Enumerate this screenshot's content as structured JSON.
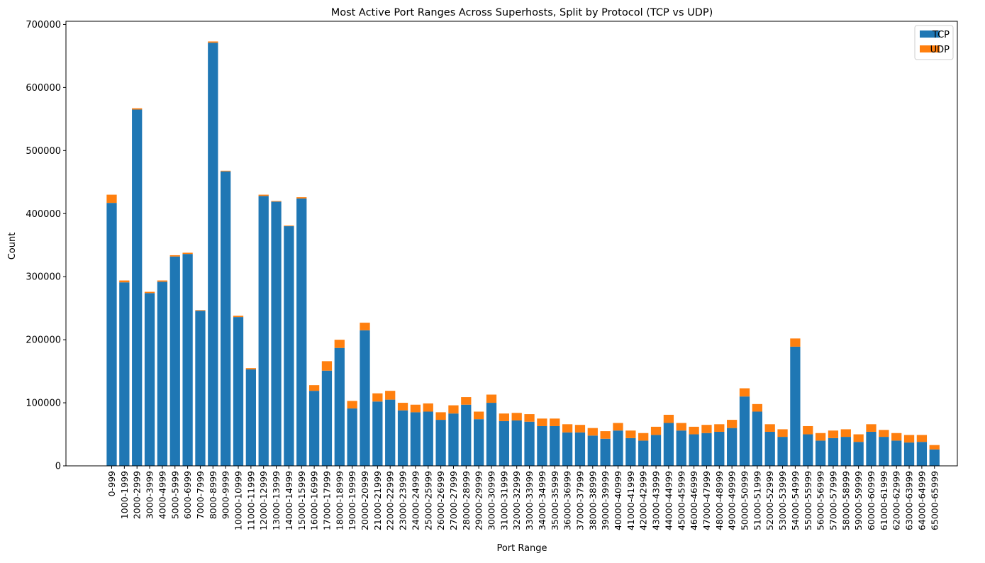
{
  "chart_data": {
    "type": "bar",
    "stacked": true,
    "title": "Most Active Port Ranges Across Superhosts, Split by Protocol (TCP vs UDP)",
    "xlabel": "Port Range",
    "ylabel": "Count",
    "ylim": [
      0,
      705000
    ],
    "yticks": [
      0,
      100000,
      200000,
      300000,
      400000,
      500000,
      600000,
      700000
    ],
    "ytick_labels": [
      "0",
      "100000",
      "200000",
      "300000",
      "400000",
      "500000",
      "600000",
      "700000"
    ],
    "grid": false,
    "legend_position": "top-right",
    "categories": [
      "0-999",
      "1000-1999",
      "2000-2999",
      "3000-3999",
      "4000-4999",
      "5000-5999",
      "6000-6999",
      "7000-7999",
      "8000-8999",
      "9000-9999",
      "10000-10999",
      "11000-11999",
      "12000-12999",
      "13000-13999",
      "14000-14999",
      "15000-15999",
      "16000-16999",
      "17000-17999",
      "18000-18999",
      "19000-19999",
      "20000-20999",
      "21000-21999",
      "22000-22999",
      "23000-23999",
      "24000-24999",
      "25000-25999",
      "26000-26999",
      "27000-27999",
      "28000-28999",
      "29000-29999",
      "30000-30999",
      "31000-31999",
      "32000-32999",
      "33000-33999",
      "34000-34999",
      "35000-35999",
      "36000-36999",
      "37000-37999",
      "38000-38999",
      "39000-39999",
      "40000-40999",
      "41000-41999",
      "42000-42999",
      "43000-43999",
      "44000-44999",
      "45000-45999",
      "46000-46999",
      "47000-47999",
      "48000-48999",
      "49000-49999",
      "50000-50999",
      "51000-51999",
      "52000-52999",
      "53000-53999",
      "54000-54999",
      "55000-55999",
      "56000-56999",
      "57000-57999",
      "58000-58999",
      "59000-59999",
      "60000-60999",
      "61000-61999",
      "62000-62999",
      "63000-63999",
      "64000-64999",
      "65000-65999"
    ],
    "series": [
      {
        "name": "TCP",
        "color": "#1f77b4",
        "values": [
          417000,
          291000,
          565000,
          274000,
          292000,
          332000,
          336000,
          246000,
          671000,
          467000,
          236000,
          153000,
          428000,
          419000,
          380000,
          424000,
          119000,
          151000,
          187000,
          91000,
          215000,
          102000,
          105000,
          88000,
          85000,
          86000,
          73000,
          83000,
          97000,
          74000,
          100000,
          71000,
          72000,
          70000,
          63000,
          63000,
          53000,
          53000,
          48000,
          43000,
          56000,
          44000,
          40000,
          49000,
          68000,
          56000,
          50000,
          52000,
          54000,
          60000,
          110000,
          86000,
          54000,
          46000,
          189000,
          50000,
          40000,
          44000,
          46000,
          38000,
          54000,
          46000,
          40000,
          37000,
          38000,
          26000
        ]
      },
      {
        "name": "UDP",
        "color": "#ff7f0e",
        "values": [
          13000,
          3000,
          2000,
          2000,
          2000,
          2000,
          2000,
          1000,
          2000,
          1000,
          2000,
          2000,
          2000,
          1000,
          1000,
          2000,
          9000,
          15000,
          13000,
          12000,
          12000,
          13000,
          14000,
          12000,
          12000,
          13000,
          12000,
          13000,
          12000,
          12000,
          13000,
          12000,
          12000,
          12000,
          12000,
          12000,
          13000,
          12000,
          12000,
          12000,
          12000,
          12000,
          12000,
          13000,
          13000,
          12000,
          12000,
          13000,
          12000,
          13000,
          13000,
          12000,
          12000,
          12000,
          13000,
          13000,
          12000,
          12000,
          12000,
          12000,
          12000,
          11000,
          12000,
          12000,
          11000,
          7000
        ]
      }
    ]
  }
}
